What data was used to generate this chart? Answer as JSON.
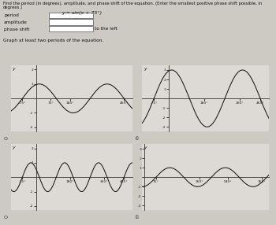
{
  "title_line1": "Find the period (in degrees), amplitude, and phase shift of the equation. (Enter the smallest positive phase shift possible, in",
  "title_line2": "degrees.)",
  "equation": "y = sin(x + 75°)",
  "fields": [
    "period",
    "amplitude",
    "phase shift"
  ],
  "to_the_left": "to the left",
  "graph_instruction": "Graph at least two periods of the equation.",
  "bg_color": "#cdc9c3",
  "graph_bg": "#ddd9d4",
  "graph_line_color": "#1a1a1a",
  "axis_color": "#333333",
  "graphs": [
    {
      "amp": 1,
      "period": 360,
      "phase": 75,
      "xmin": -135,
      "xmax": 510,
      "ylim": [
        -2.3,
        2.3
      ],
      "yticks": [
        -2,
        -1,
        1,
        2
      ],
      "ytick_labels": [
        "-2",
        "-1",
        "1",
        "2"
      ],
      "xtick_vals": [
        -75,
        75,
        180,
        465
      ],
      "xtick_labels": [
        "-75°",
        "75°",
        "180°",
        "465°"
      ],
      "circle": "O",
      "x_axis_cross": 0,
      "freq_mult": 1
    },
    {
      "amp": 3,
      "period": 360,
      "phase": 75,
      "xmin": -135,
      "xmax": 510,
      "ylim": [
        -3.5,
        3.5
      ],
      "yticks": [
        -3,
        -2,
        -1,
        1,
        2,
        3
      ],
      "ytick_labels": [
        "-3",
        "-2",
        "-1",
        "1",
        "2",
        "3"
      ],
      "xtick_vals": [
        -75,
        180,
        360,
        465
      ],
      "xtick_labels": [
        "-75°",
        "180°",
        "360°",
        "465°"
      ],
      "circle": "①",
      "x_axis_cross": 0,
      "freq_mult": 1
    },
    {
      "amp": 1,
      "period": 180,
      "phase": 75,
      "xmin": -135,
      "xmax": 510,
      "ylim": [
        -2.3,
        2.3
      ],
      "yticks": [
        -2,
        -1,
        1,
        2
      ],
      "ytick_labels": [
        "-2",
        "-1",
        "1",
        "2"
      ],
      "xtick_vals": [
        -75,
        180,
        360,
        465
      ],
      "xtick_labels": [
        "-75°",
        "180°",
        "360°",
        "465°"
      ],
      "circle": "O",
      "x_axis_cross": 0,
      "freq_mult": 2
    },
    {
      "amp": 1,
      "period": 360,
      "phase": -75,
      "xmin": -15,
      "xmax": 810,
      "ylim": [
        -3.5,
        3.5
      ],
      "yticks": [
        -3,
        -2,
        -1,
        1,
        2,
        3
      ],
      "ytick_labels": [
        "-3",
        "-2",
        "-1",
        "1",
        "2",
        "3"
      ],
      "xtick_vals": [
        75,
        360,
        540,
        765
      ],
      "xtick_labels": [
        "75°",
        "360°",
        "540°",
        "765°"
      ],
      "circle": "①",
      "x_axis_cross": 0,
      "freq_mult": 1
    }
  ]
}
